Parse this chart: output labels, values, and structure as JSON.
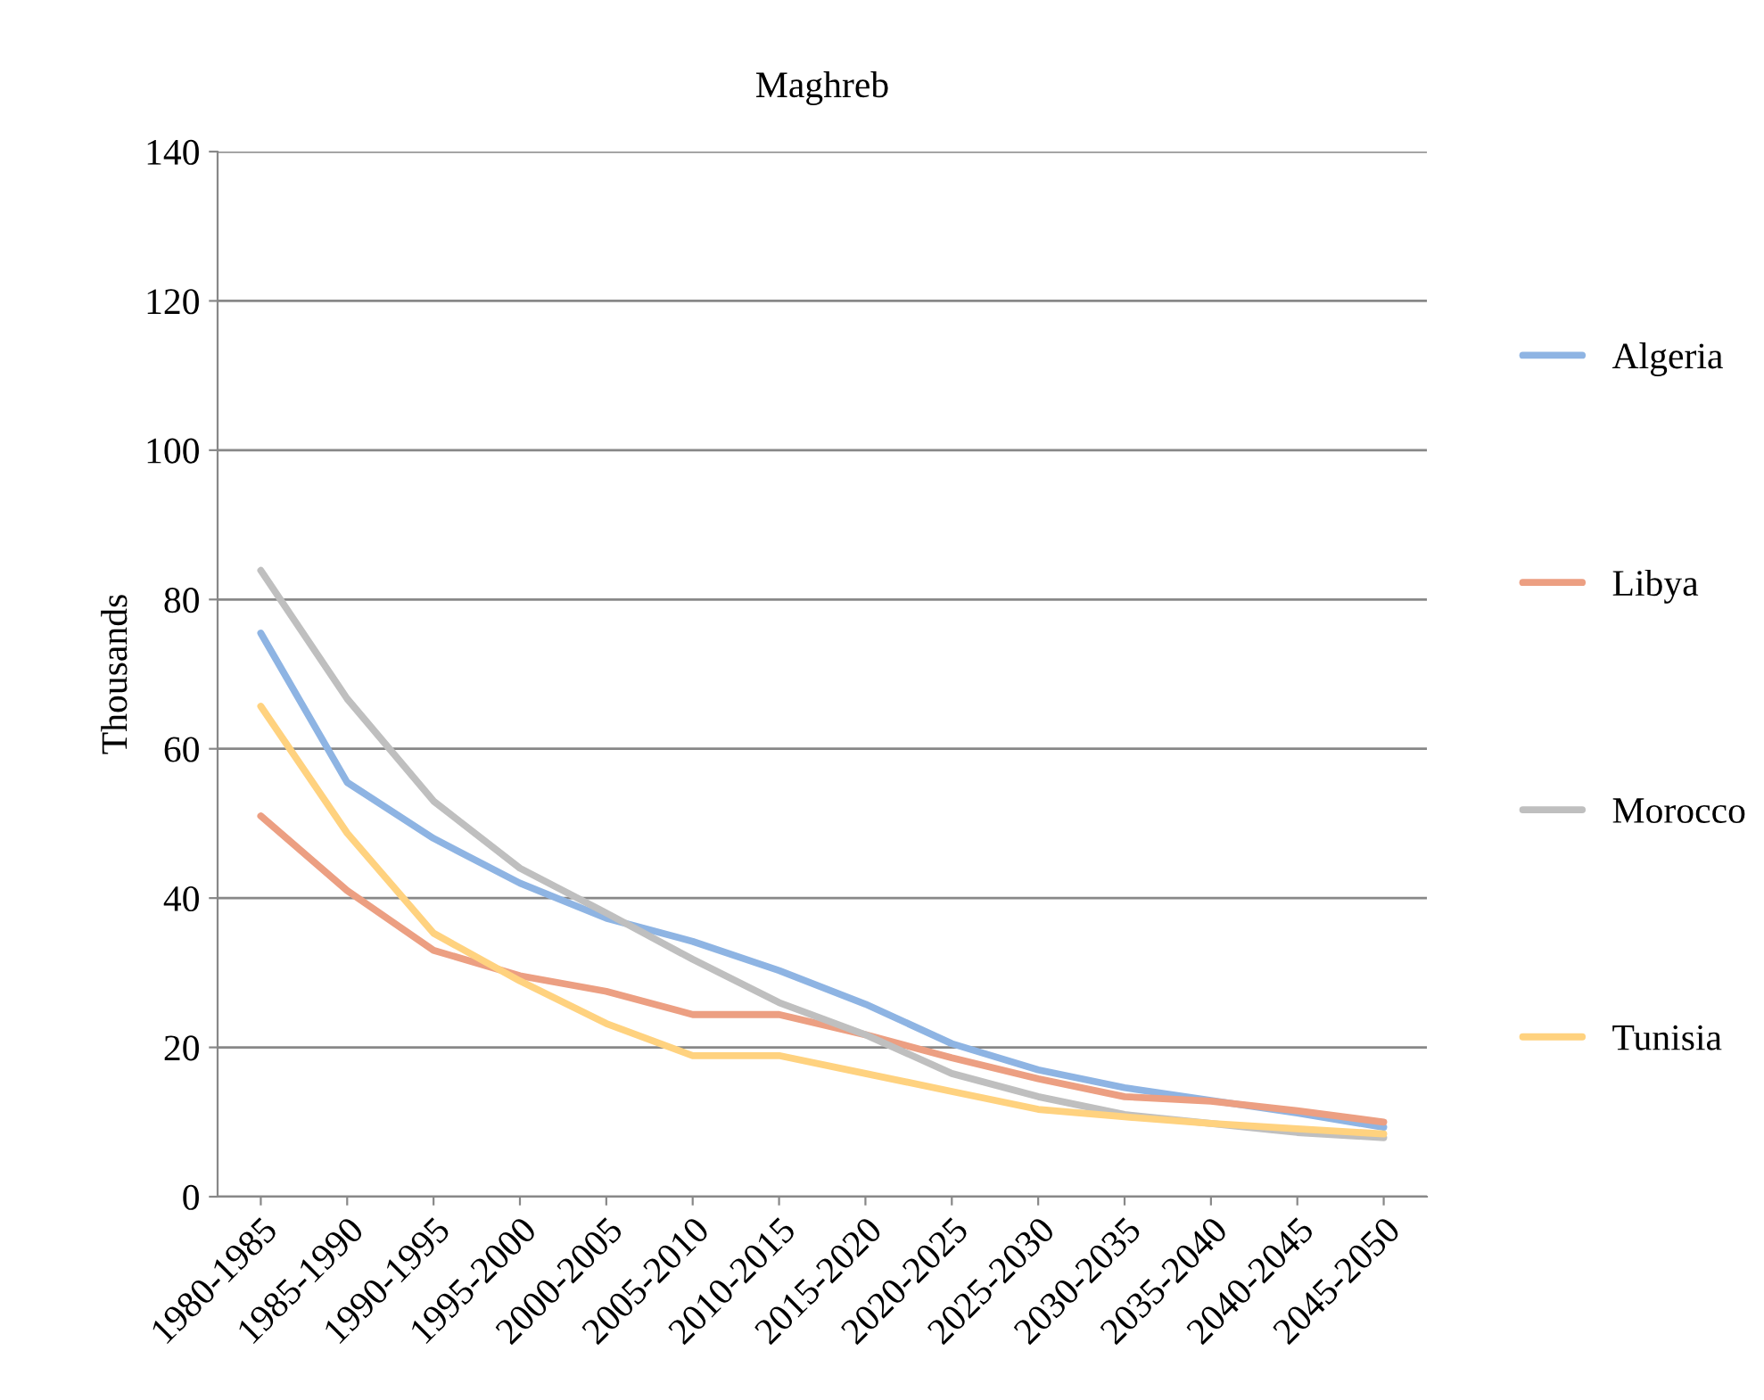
{
  "chart_data": {
    "type": "line",
    "title": "Maghreb",
    "ylabel": "Thousands",
    "categories": [
      "1980-1985",
      "1985-1990",
      "1990-1995",
      "1995-2000",
      "2000-2005",
      "2005-2010",
      "2010-2015",
      "2015-2020",
      "2020-2025",
      "2025-2030",
      "2030-2035",
      "2035-2040",
      "2040-2045",
      "2045-2050"
    ],
    "series": [
      {
        "name": "Algeria",
        "color": "#8eb4e3",
        "values": [
          75.5,
          55.5,
          48,
          42,
          37.3,
          34.2,
          30.3,
          25.8,
          20.5,
          17,
          14.6,
          12.9,
          11.2,
          9.3
        ]
      },
      {
        "name": "Libya",
        "color": "#ec9f82",
        "values": [
          51,
          41,
          33,
          29.6,
          27.5,
          24.4,
          24.4,
          21.7,
          18.6,
          15.8,
          13.4,
          12.8,
          11.5,
          10
        ]
      },
      {
        "name": "Morocco",
        "color": "#bfbfbf",
        "values": [
          83.9,
          66.7,
          53,
          44,
          38,
          31.8,
          26,
          21.7,
          16.5,
          13.4,
          11,
          9.8,
          8.6,
          7.9
        ]
      },
      {
        "name": "Tunisia",
        "color": "#ffd27f",
        "values": [
          65.7,
          48.7,
          35.3,
          28.9,
          23.2,
          18.9,
          18.9,
          16.5,
          14.1,
          11.7,
          10.7,
          9.8,
          9.1,
          8.4
        ]
      }
    ],
    "ylim": [
      0,
      140
    ],
    "yticks": [
      0,
      20,
      40,
      60,
      80,
      100,
      120,
      140
    ],
    "grid": "y",
    "legend": "right",
    "marker": "none",
    "line_style": "solid"
  }
}
